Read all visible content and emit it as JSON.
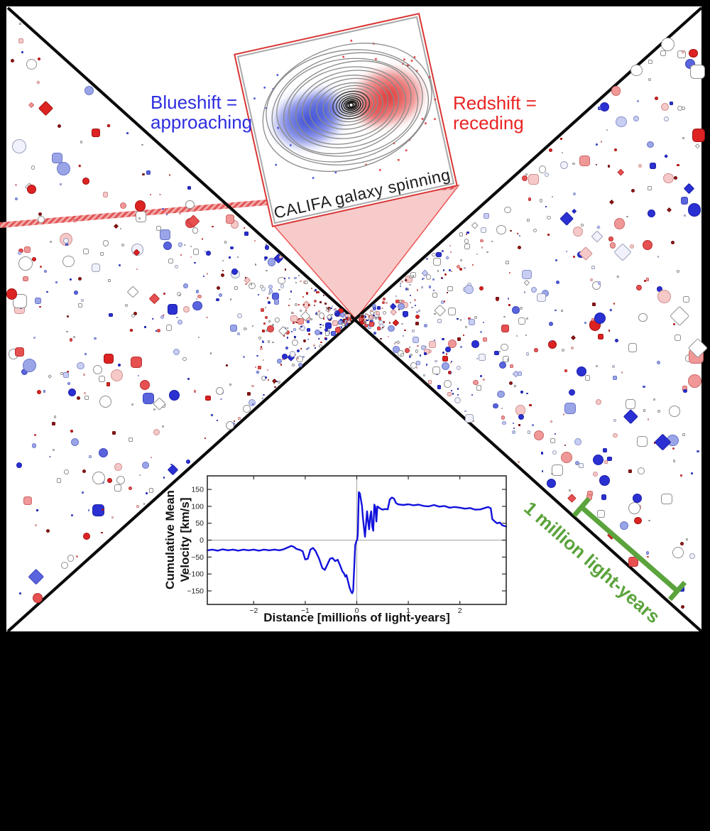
{
  "figure": {
    "background": "#000000",
    "panel_background": "#ffffff",
    "panel_border_color": "#000000",
    "bowtie_line_color": "#0a0a0a"
  },
  "labels": {
    "blueshift": {
      "line1": "Blueshift =",
      "line2": "approaching",
      "color": "#2d2de0"
    },
    "redshift": {
      "line1": "Redshift =",
      "line2": "receding",
      "color": "#ea2424"
    },
    "galaxy_caption": "CALIFA galaxy spinning",
    "scale_bar": {
      "text": "1 million light-years",
      "color": "#5ba33c"
    }
  },
  "galaxy_inset": {
    "border_color": "#d93434",
    "frame_color": "#a8a8a8",
    "contour_color": "#8a8a8a",
    "blueshift_color": "#2b3bd0",
    "redshift_color": "#dd2424",
    "beam_fill": "#f8cbcb",
    "beam_edge": "#ee5555"
  },
  "chart_data": {
    "type": "line",
    "xlabel": "Distance [millions of light-years]",
    "ylabel_lines": [
      "Cumulative Mean",
      "Velocity [km/s]"
    ],
    "xlim": [
      -2.9,
      2.9
    ],
    "ylim": [
      -190,
      190
    ],
    "xticks": [
      -2,
      -1,
      0,
      1,
      2
    ],
    "yticks": [
      150,
      100,
      50,
      0,
      -50,
      -100,
      -150
    ],
    "grid": "zero-lines-only",
    "legend": "none",
    "line_color": "#1212dd",
    "series": [
      {
        "name": "cumulative mean velocity",
        "points": [
          [
            -2.9,
            -30
          ],
          [
            -2.8,
            -28
          ],
          [
            -2.7,
            -31
          ],
          [
            -2.6,
            -27
          ],
          [
            -2.5,
            -30
          ],
          [
            -2.4,
            -28
          ],
          [
            -2.3,
            -31
          ],
          [
            -2.2,
            -28
          ],
          [
            -2.1,
            -30
          ],
          [
            -2.0,
            -28
          ],
          [
            -1.9,
            -31
          ],
          [
            -1.8,
            -28
          ],
          [
            -1.7,
            -30
          ],
          [
            -1.6,
            -28
          ],
          [
            -1.5,
            -30
          ],
          [
            -1.42,
            -27
          ],
          [
            -1.33,
            -21
          ],
          [
            -1.27,
            -17
          ],
          [
            -1.22,
            -20
          ],
          [
            -1.17,
            -26
          ],
          [
            -1.1,
            -29
          ],
          [
            -1.05,
            -33
          ],
          [
            -1.0,
            -57
          ],
          [
            -0.95,
            -55
          ],
          [
            -0.9,
            -28
          ],
          [
            -0.85,
            -23
          ],
          [
            -0.8,
            -32
          ],
          [
            -0.73,
            -55
          ],
          [
            -0.67,
            -82
          ],
          [
            -0.62,
            -88
          ],
          [
            -0.57,
            -72
          ],
          [
            -0.52,
            -55
          ],
          [
            -0.47,
            -53
          ],
          [
            -0.42,
            -62
          ],
          [
            -0.37,
            -58
          ],
          [
            -0.33,
            -72
          ],
          [
            -0.28,
            -92
          ],
          [
            -0.25,
            -98
          ],
          [
            -0.22,
            -108
          ],
          [
            -0.2,
            -103
          ],
          [
            -0.17,
            -122
          ],
          [
            -0.14,
            -140
          ],
          [
            -0.11,
            -152
          ],
          [
            -0.09,
            -157
          ],
          [
            -0.07,
            -150
          ],
          [
            -0.05,
            -80
          ],
          [
            -0.03,
            -15
          ],
          [
            -0.01,
            -4
          ],
          [
            0.01,
            2
          ],
          [
            0.02,
            20
          ],
          [
            0.04,
            142
          ],
          [
            0.06,
            138
          ],
          [
            0.08,
            120
          ],
          [
            0.1,
            102
          ],
          [
            0.12,
            65
          ],
          [
            0.14,
            35
          ],
          [
            0.16,
            10
          ],
          [
            0.18,
            50
          ],
          [
            0.2,
            85
          ],
          [
            0.22,
            55
          ],
          [
            0.24,
            32
          ],
          [
            0.26,
            70
          ],
          [
            0.28,
            85
          ],
          [
            0.3,
            40
          ],
          [
            0.32,
            28
          ],
          [
            0.34,
            105
          ],
          [
            0.36,
            98
          ],
          [
            0.38,
            55
          ],
          [
            0.4,
            100
          ],
          [
            0.44,
            95
          ],
          [
            0.5,
            90
          ],
          [
            0.55,
            92
          ],
          [
            0.6,
            91
          ],
          [
            0.64,
            120
          ],
          [
            0.68,
            126
          ],
          [
            0.72,
            123
          ],
          [
            0.76,
            110
          ],
          [
            0.8,
            106
          ],
          [
            0.9,
            104
          ],
          [
            1.0,
            106
          ],
          [
            1.1,
            103
          ],
          [
            1.2,
            105
          ],
          [
            1.3,
            101
          ],
          [
            1.4,
            100
          ],
          [
            1.5,
            104
          ],
          [
            1.6,
            99
          ],
          [
            1.7,
            101
          ],
          [
            1.8,
            96
          ],
          [
            1.9,
            98
          ],
          [
            2.0,
            96
          ],
          [
            2.1,
            93
          ],
          [
            2.2,
            95
          ],
          [
            2.3,
            90
          ],
          [
            2.4,
            91
          ],
          [
            2.5,
            96
          ],
          [
            2.55,
            98
          ],
          [
            2.6,
            94
          ],
          [
            2.63,
            62
          ],
          [
            2.68,
            55
          ],
          [
            2.72,
            50
          ],
          [
            2.78,
            52
          ],
          [
            2.82,
            44
          ],
          [
            2.9,
            40
          ]
        ]
      }
    ]
  },
  "scatter_field": {
    "description": "galaxies colored by velocity: blue approaching, red receding",
    "seed": 42,
    "count": 1020,
    "palette": [
      {
        "fill": "#ffffff",
        "stroke": "#8f8f8f",
        "weight": 0.24
      },
      {
        "fill": "#f0f1fb",
        "stroke": "#9aa0b8",
        "weight": 0.07
      },
      {
        "fill": "#c8cdf2",
        "stroke": "#8890cc",
        "weight": 0.07
      },
      {
        "fill": "#9aa5e8",
        "stroke": "#6a76c8",
        "weight": 0.08
      },
      {
        "fill": "#5a64dd",
        "stroke": "#3a44bb",
        "weight": 0.07
      },
      {
        "fill": "#2b30d2",
        "stroke": "#1b20a8",
        "weight": 0.12
      },
      {
        "fill": "#f6c9c9",
        "stroke": "#d09090",
        "weight": 0.09
      },
      {
        "fill": "#f09898",
        "stroke": "#cc6666",
        "weight": 0.06
      },
      {
        "fill": "#e65050",
        "stroke": "#bb3030",
        "weight": 0.07
      },
      {
        "fill": "#dd2222",
        "stroke": "#a31212",
        "weight": 0.08
      },
      {
        "fill": "#8e1616",
        "stroke": "#6d0e0e",
        "weight": 0.05
      }
    ],
    "shapes": [
      {
        "kind": "circle",
        "weight": 0.6
      },
      {
        "kind": "square",
        "weight": 0.3
      },
      {
        "kind": "diamond",
        "weight": 0.1
      }
    ]
  }
}
